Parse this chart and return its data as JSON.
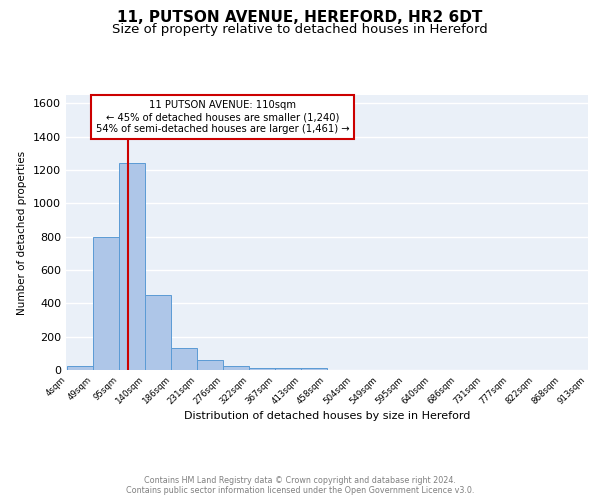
{
  "title_line1": "11, PUTSON AVENUE, HEREFORD, HR2 6DT",
  "title_line2": "Size of property relative to detached houses in Hereford",
  "xlabel": "Distribution of detached houses by size in Hereford",
  "ylabel": "Number of detached properties",
  "annotation_line1": "11 PUTSON AVENUE: 110sqm",
  "annotation_line2": "← 45% of detached houses are smaller (1,240)",
  "annotation_line3": "54% of semi-detached houses are larger (1,461) →",
  "footer_line1": "Contains HM Land Registry data © Crown copyright and database right 2024.",
  "footer_line2": "Contains public sector information licensed under the Open Government Licence v3.0.",
  "bar_edges": [
    4,
    49,
    95,
    140,
    186,
    231,
    276,
    322,
    367,
    413,
    458,
    504,
    549,
    595,
    640,
    686,
    731,
    777,
    822,
    868,
    913
  ],
  "bar_heights": [
    25,
    800,
    1240,
    450,
    130,
    60,
    25,
    15,
    15,
    15,
    0,
    0,
    0,
    0,
    0,
    0,
    0,
    0,
    0,
    0
  ],
  "bar_color": "#aec6e8",
  "bar_edgecolor": "#5b9bd5",
  "redline_x": 110,
  "ylim": [
    0,
    1650
  ],
  "yticks": [
    0,
    200,
    400,
    600,
    800,
    1000,
    1200,
    1400,
    1600
  ],
  "bg_color": "#eaf0f8",
  "plot_bg_color": "#eaf0f8",
  "grid_color": "#ffffff",
  "annotation_box_edgecolor": "#cc0000",
  "annotation_box_facecolor": "#ffffff",
  "redline_color": "#cc0000",
  "title_fontsize": 11,
  "subtitle_fontsize": 9.5,
  "tick_labels": [
    "4sqm",
    "49sqm",
    "95sqm",
    "140sqm",
    "186sqm",
    "231sqm",
    "276sqm",
    "322sqm",
    "367sqm",
    "413sqm",
    "458sqm",
    "504sqm",
    "549sqm",
    "595sqm",
    "640sqm",
    "686sqm",
    "731sqm",
    "777sqm",
    "822sqm",
    "868sqm",
    "913sqm"
  ]
}
